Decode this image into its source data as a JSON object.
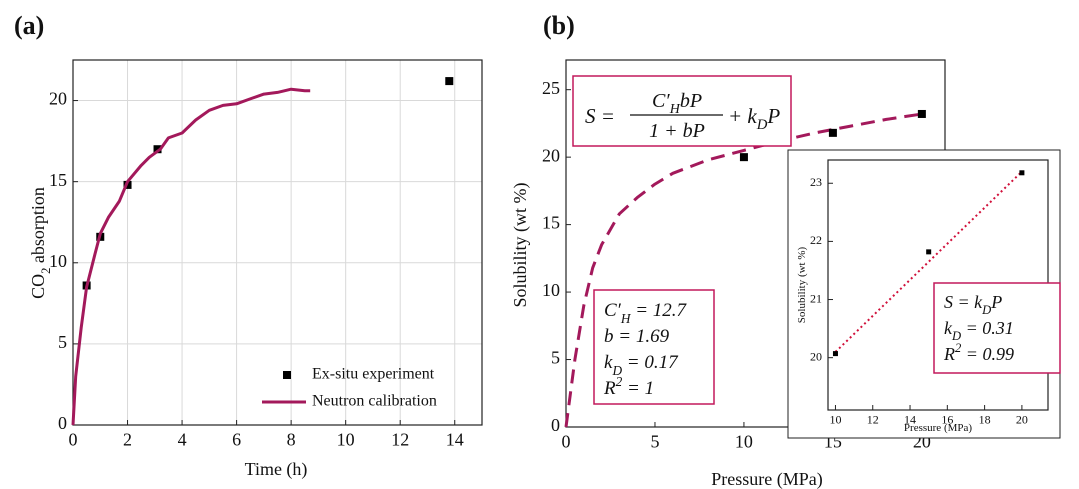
{
  "chart_data": [
    {
      "type": "scatter",
      "panel_label": "(a)",
      "xlabel": [
        {
          "t": "Time (h)"
        }
      ],
      "ylabel": [
        {
          "t": "CO"
        },
        {
          "sub": "2"
        },
        {
          "t": " absorption"
        }
      ],
      "xlim": [
        0,
        15
      ],
      "ylim": [
        0,
        22.5
      ],
      "xticks": [
        0,
        2,
        4,
        6,
        8,
        10,
        12,
        14
      ],
      "yticks": [
        0,
        5,
        10,
        15,
        20
      ],
      "grid": true,
      "legend": "lower right",
      "series": [
        {
          "name": "Ex-situ experiment",
          "style": "markers",
          "color": "#000000",
          "x": [
            0.5,
            1,
            2,
            3.1,
            13.8
          ],
          "values": [
            8.6,
            11.6,
            14.8,
            17,
            21.2
          ]
        },
        {
          "name": "Neutron calibration",
          "style": "line",
          "color": "#a3195b",
          "x": [
            0,
            0.1,
            0.3,
            0.5,
            0.8,
            1,
            1.3,
            1.7,
            2,
            2.5,
            2.8,
            3.2,
            3.5,
            4,
            4.5,
            5,
            5.5,
            6,
            6.5,
            7,
            7.5,
            8,
            8.5,
            8.7
          ],
          "values": [
            0,
            3,
            6,
            8.5,
            10.5,
            11.8,
            12.8,
            13.8,
            15,
            16,
            16.5,
            17,
            17.7,
            18,
            18.8,
            19.4,
            19.7,
            19.8,
            20.1,
            20.4,
            20.5,
            20.7,
            20.6,
            20.6
          ]
        }
      ]
    },
    {
      "type": "scatter",
      "panel_label": "(b)",
      "xlabel": [
        {
          "t": "Pressure (MPa)"
        }
      ],
      "ylabel": [
        {
          "t": "Solubility (wt %)"
        }
      ],
      "xlim": [
        0,
        21.3
      ],
      "ylim": [
        0,
        27.2
      ],
      "xticks": [
        0,
        5,
        10,
        15,
        20
      ],
      "yticks": [
        0,
        5,
        10,
        15,
        20,
        25
      ],
      "grid": false,
      "series": [
        {
          "style": "dashed",
          "color": "#a3195b",
          "x": [
            0,
            0.5,
            1,
            1.5,
            2,
            3,
            4,
            5,
            6,
            8,
            10,
            12,
            14,
            16,
            18,
            20
          ],
          "values": [
            0,
            5,
            9,
            11.8,
            13.5,
            15.8,
            17,
            18,
            18.8,
            19.8,
            20.5,
            21.2,
            21.8,
            22.3,
            22.8,
            23.2
          ]
        },
        {
          "style": "markers",
          "color": "#000000",
          "x": [
            10,
            15,
            20
          ],
          "values": [
            20,
            21.8,
            23.2
          ]
        }
      ],
      "equation": {
        "lhs": [
          {
            "t": "S ="
          }
        ],
        "numerator": [
          {
            "t": "C′"
          },
          {
            "sub": "H"
          },
          {
            "t": "bP"
          }
        ],
        "denominator": [
          {
            "t": "1 + bP"
          }
        ],
        "rhs": [
          {
            "t": "+ k"
          },
          {
            "sub": "D"
          },
          {
            "t": "P"
          }
        ]
      },
      "params": [
        [
          {
            "t": "C′"
          },
          {
            "sub": "H"
          },
          {
            "t": " = 12.7"
          }
        ],
        [
          {
            "t": "b = 1.69"
          }
        ],
        [
          {
            "t": "k"
          },
          {
            "sub": "D"
          },
          {
            "t": " = 0.17"
          }
        ],
        [
          {
            "t": "R"
          },
          {
            "sup": "2"
          },
          {
            "t": " = 1"
          }
        ]
      ]
    },
    {
      "type": "scatter",
      "xlabel": [
        {
          "t": "Pressure (MPa)"
        }
      ],
      "ylabel": [
        {
          "t": "Solubility (wt %)"
        }
      ],
      "xlim": [
        9.6,
        21.4
      ],
      "ylim": [
        19.1,
        23.4
      ],
      "xticks": [
        10,
        12,
        14,
        16,
        18,
        20
      ],
      "yticks": [
        20,
        21,
        22,
        23
      ],
      "grid": false,
      "series": [
        {
          "style": "dotted",
          "color": "#d0103a",
          "x": [
            10,
            20
          ],
          "values": [
            20.1,
            23.2
          ]
        },
        {
          "style": "markers",
          "color": "#000000",
          "x": [
            10,
            15,
            20
          ],
          "values": [
            20.07,
            21.82,
            23.18
          ]
        }
      ],
      "params": [
        [
          {
            "t": "S = k"
          },
          {
            "sub": "D"
          },
          {
            "t": "P"
          }
        ],
        [
          {
            "t": "k"
          },
          {
            "sub": "D"
          },
          {
            "t": " = 0.31"
          }
        ],
        [
          {
            "t": "R"
          },
          {
            "sup": "2"
          },
          {
            "t": " = 0.99"
          }
        ]
      ]
    }
  ]
}
